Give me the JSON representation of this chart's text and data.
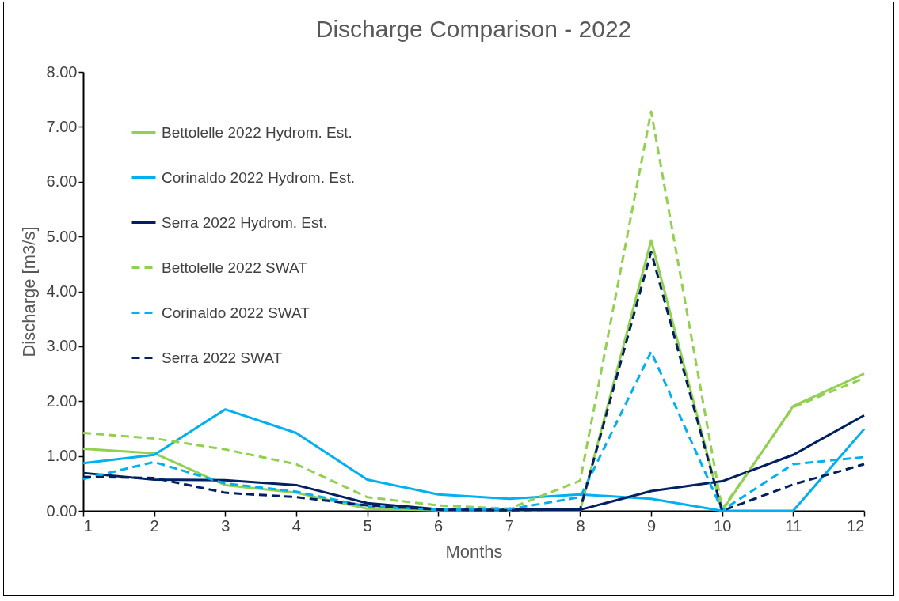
{
  "chart_data": {
    "type": "line",
    "title": "Discharge Comparison - 2022",
    "xlabel": "Months",
    "ylabel": "Discharge [m3/s]",
    "x": [
      1,
      2,
      3,
      4,
      5,
      6,
      7,
      8,
      9,
      10,
      11,
      12
    ],
    "xlim": [
      1,
      12
    ],
    "xticks": [
      1,
      2,
      3,
      4,
      5,
      6,
      7,
      8,
      9,
      10,
      11,
      12
    ],
    "ylim": [
      0,
      8
    ],
    "yticks": [
      {
        "value": 0,
        "label": "0.00"
      },
      {
        "value": 1,
        "label": "1.00"
      },
      {
        "value": 2,
        "label": "2.00"
      },
      {
        "value": 3,
        "label": "3.00"
      },
      {
        "value": 4,
        "label": "4.00"
      },
      {
        "value": 5,
        "label": "5.00"
      },
      {
        "value": 6,
        "label": "6.00"
      },
      {
        "value": 7,
        "label": "7.00"
      },
      {
        "value": 8,
        "label": "8.00"
      }
    ],
    "grid": false,
    "legend": "top left",
    "series": [
      {
        "name": "Bettolelle 2022 Hydrom. Est.",
        "color": "#92d050",
        "line_style": "solid",
        "values": [
          1.13,
          1.05,
          0.47,
          0.33,
          0.04,
          0.01,
          0.01,
          0.01,
          4.93,
          0,
          1.91,
          2.5
        ]
      },
      {
        "name": "Corinaldo 2022 Hydrom. Est.",
        "color": "#00b0f0",
        "line_style": "solid",
        "values": [
          0.87,
          1.02,
          1.85,
          1.42,
          0.57,
          0.3,
          0.22,
          0.3,
          0.22,
          0,
          0,
          1.49
        ]
      },
      {
        "name": "Serra 2022 Hydrom. Est.",
        "color": "#002060",
        "line_style": "solid",
        "values": [
          0.69,
          0.57,
          0.56,
          0.47,
          0.14,
          0.03,
          0.02,
          0.02,
          0.36,
          0.54,
          1.02,
          1.74
        ]
      },
      {
        "name": "Bettolelle 2022 SWAT",
        "color": "#92d050",
        "line_style": "dashed",
        "values": [
          1.42,
          1.32,
          1.12,
          0.85,
          0.25,
          0.1,
          0.04,
          0.55,
          7.28,
          0.03,
          1.89,
          2.42
        ]
      },
      {
        "name": "Corinaldo 2022 SWAT",
        "color": "#00b0f0",
        "line_style": "dashed",
        "values": [
          0.58,
          0.89,
          0.5,
          0.35,
          0.08,
          0.02,
          0.03,
          0.25,
          2.9,
          0.01,
          0.85,
          0.98
        ]
      },
      {
        "name": "Serra 2022 SWAT",
        "color": "#002060",
        "line_style": "dashed",
        "values": [
          0.62,
          0.6,
          0.33,
          0.25,
          0.1,
          0.02,
          0.01,
          0.03,
          4.72,
          0,
          0.48,
          0.85
        ]
      }
    ]
  }
}
